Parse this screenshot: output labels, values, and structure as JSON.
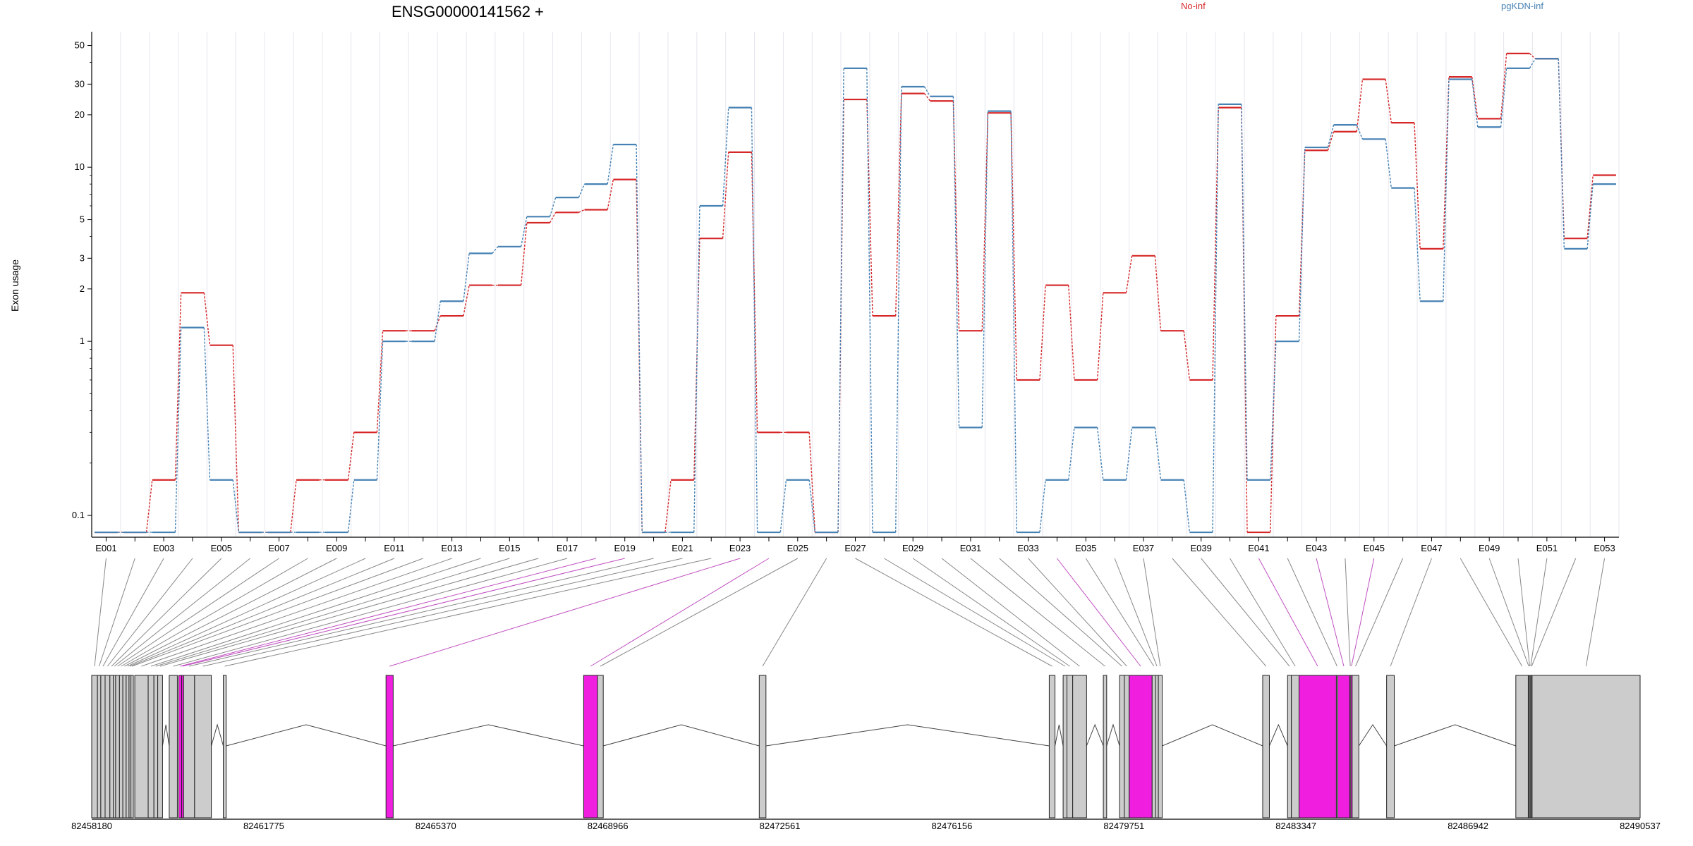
{
  "chart_data": {
    "type": "line",
    "title": "ENSG00000141562 +",
    "ylabel": "Exon usage",
    "xlabel": "",
    "y_scale": "log",
    "ylim": [
      0.075,
      60
    ],
    "y_ticks": [
      0.1,
      1,
      2,
      3,
      5,
      10,
      20,
      30,
      50
    ],
    "y_tick_labels": [
      "0.1",
      "1",
      "2",
      "3",
      "5",
      "10",
      "20",
      "30",
      "50"
    ],
    "grid": "vertical, light",
    "legend": "top, horizontal",
    "categories": [
      "E001",
      "E002",
      "E003",
      "E004",
      "E005",
      "E006",
      "E007",
      "E008",
      "E009",
      "E010",
      "E011",
      "E012",
      "E013",
      "E014",
      "E015",
      "E016",
      "E017",
      "E018",
      "E019",
      "E020",
      "E021",
      "E022",
      "E023",
      "E024",
      "E025",
      "E026",
      "E027",
      "E028",
      "E029",
      "E030",
      "E031",
      "E032",
      "E033",
      "E034",
      "E035",
      "E036",
      "E037",
      "E038",
      "E039",
      "E040",
      "E041",
      "E042",
      "E043",
      "E044",
      "E045",
      "E046",
      "E047",
      "E048",
      "E049",
      "E050",
      "E051",
      "E052",
      "E053"
    ],
    "x_tick_labels": [
      "E001",
      "E003",
      "E005",
      "E007",
      "E009",
      "E011",
      "E013",
      "E015",
      "E017",
      "E019",
      "E021",
      "E023",
      "E025",
      "E027",
      "E029",
      "E031",
      "E033",
      "E035",
      "E037",
      "E039",
      "E041",
      "E043",
      "E045",
      "E047",
      "E049",
      "E051",
      "E053"
    ],
    "series": [
      {
        "name": "No-inf",
        "color": "#d62728",
        "values": [
          0.08,
          0.08,
          0.16,
          1.9,
          0.95,
          0.08,
          0.08,
          0.16,
          0.16,
          0.3,
          1.15,
          1.15,
          1.4,
          2.1,
          2.1,
          4.8,
          5.5,
          5.7,
          8.5,
          0.08,
          0.16,
          3.9,
          12.2,
          0.3,
          0.3,
          0.08,
          24.5,
          1.4,
          26.5,
          24.0,
          1.15,
          20.5,
          0.6,
          2.1,
          0.6,
          1.9,
          3.1,
          1.15,
          0.6,
          22.0,
          0.08,
          1.4,
          12.5,
          16.0,
          32.0,
          18.0,
          3.4,
          33.0,
          19.0,
          45.0,
          42.0,
          3.9,
          9.0
        ]
      },
      {
        "name": "pgKDN-inf",
        "color": "#4682b4",
        "values": [
          0.08,
          0.08,
          0.08,
          1.2,
          0.16,
          0.08,
          0.08,
          0.08,
          0.08,
          0.16,
          1.0,
          1.0,
          1.7,
          3.2,
          3.5,
          5.2,
          6.7,
          8.0,
          13.5,
          0.08,
          0.08,
          6.0,
          22.0,
          0.08,
          0.16,
          0.08,
          37.0,
          0.08,
          29.0,
          25.5,
          0.32,
          21.0,
          0.08,
          0.16,
          0.32,
          0.16,
          0.32,
          0.16,
          0.08,
          23.0,
          0.16,
          1.0,
          13.0,
          17.5,
          14.5,
          7.6,
          1.7,
          32.0,
          17.0,
          37.0,
          42.0,
          3.4,
          8.0
        ]
      }
    ],
    "gene_model": {
      "genomic_ticks": [
        "82458180",
        "82461775",
        "82465370",
        "82468966",
        "82472561",
        "82476156",
        "82479751",
        "82483347",
        "82486942",
        "82490537"
      ],
      "range_start": 82458180,
      "range_end": 82490537,
      "box_fill": "#cccccc",
      "highlight_fill": "#f01fe0",
      "exons": [
        {
          "id": "E001",
          "start": 82458180,
          "end": 82458300,
          "hl": false
        },
        {
          "id": "E002",
          "start": 82458300,
          "end": 82458370,
          "hl": false
        },
        {
          "id": "E003",
          "start": 82458370,
          "end": 82458460,
          "hl": false
        },
        {
          "id": "E004",
          "start": 82458460,
          "end": 82458560,
          "hl": false
        },
        {
          "id": "E005",
          "start": 82458560,
          "end": 82458630,
          "hl": false
        },
        {
          "id": "E006",
          "start": 82458630,
          "end": 82458680,
          "hl": false
        },
        {
          "id": "E007",
          "start": 82458680,
          "end": 82458760,
          "hl": false
        },
        {
          "id": "E008",
          "start": 82458760,
          "end": 82458830,
          "hl": false
        },
        {
          "id": "E009",
          "start": 82458830,
          "end": 82458900,
          "hl": false
        },
        {
          "id": "E010",
          "start": 82458900,
          "end": 82458960,
          "hl": false
        },
        {
          "id": "E011",
          "start": 82458960,
          "end": 82459000,
          "hl": false
        },
        {
          "id": "E012",
          "start": 82459000,
          "end": 82459050,
          "hl": false
        },
        {
          "id": "E013",
          "start": 82459080,
          "end": 82459360,
          "hl": false
        },
        {
          "id": "E014",
          "start": 82459360,
          "end": 82459480,
          "hl": false
        },
        {
          "id": "E015",
          "start": 82459480,
          "end": 82459560,
          "hl": false
        },
        {
          "id": "E016",
          "start": 82459560,
          "end": 82459660,
          "hl": false
        },
        {
          "id": "E017",
          "start": 82459800,
          "end": 82459970,
          "hl": false
        },
        {
          "id": "E018",
          "start": 82460000,
          "end": 82460060,
          "hl": true
        },
        {
          "id": "E019",
          "start": 82460060,
          "end": 82460100,
          "hl": true
        },
        {
          "id": "E020",
          "start": 82460100,
          "end": 82460330,
          "hl": false
        },
        {
          "id": "E021",
          "start": 82460330,
          "end": 82460680,
          "hl": false
        },
        {
          "id": "E022",
          "start": 82460930,
          "end": 82460990,
          "hl": false
        },
        {
          "id": "E023",
          "start": 82464330,
          "end": 82464480,
          "hl": true
        },
        {
          "id": "E024",
          "start": 82468460,
          "end": 82468750,
          "hl": true
        },
        {
          "id": "E025",
          "start": 82468750,
          "end": 82468870,
          "hl": false
        },
        {
          "id": "E026",
          "start": 82472130,
          "end": 82472270,
          "hl": false
        },
        {
          "id": "E027",
          "start": 82478190,
          "end": 82478310,
          "hl": false
        },
        {
          "id": "E028",
          "start": 82478480,
          "end": 82478560,
          "hl": false
        },
        {
          "id": "E029",
          "start": 82478560,
          "end": 82478680,
          "hl": false
        },
        {
          "id": "E030",
          "start": 82478680,
          "end": 82478970,
          "hl": false
        },
        {
          "id": "E031",
          "start": 82479320,
          "end": 82479390,
          "hl": false
        },
        {
          "id": "E032",
          "start": 82479660,
          "end": 82479760,
          "hl": false
        },
        {
          "id": "E033",
          "start": 82479760,
          "end": 82479860,
          "hl": false
        },
        {
          "id": "E034",
          "start": 82479860,
          "end": 82480340,
          "hl": true
        },
        {
          "id": "E035",
          "start": 82480340,
          "end": 82480410,
          "hl": false
        },
        {
          "id": "E036",
          "start": 82480410,
          "end": 82480470,
          "hl": false
        },
        {
          "id": "E037",
          "start": 82480470,
          "end": 82480550,
          "hl": false
        },
        {
          "id": "E038",
          "start": 82482650,
          "end": 82482790,
          "hl": false
        },
        {
          "id": "E039",
          "start": 82483170,
          "end": 82483250,
          "hl": false
        },
        {
          "id": "E040",
          "start": 82483250,
          "end": 82483410,
          "hl": false
        },
        {
          "id": "E041",
          "start": 82483410,
          "end": 82484190,
          "hl": true
        },
        {
          "id": "E042",
          "start": 82484190,
          "end": 82484220,
          "hl": false
        },
        {
          "id": "E043",
          "start": 82484220,
          "end": 82484470,
          "hl": true
        },
        {
          "id": "E044",
          "start": 82484470,
          "end": 82484490,
          "hl": false
        },
        {
          "id": "E045",
          "start": 82484490,
          "end": 82484520,
          "hl": true
        },
        {
          "id": "E046",
          "start": 82484520,
          "end": 82484660,
          "hl": false
        },
        {
          "id": "E047",
          "start": 82485240,
          "end": 82485400,
          "hl": false
        },
        {
          "id": "E048",
          "start": 82487940,
          "end": 82488200,
          "hl": false
        },
        {
          "id": "E049",
          "start": 82488200,
          "end": 82488220,
          "hl": false
        },
        {
          "id": "E050",
          "start": 82488220,
          "end": 82488240,
          "hl": false
        },
        {
          "id": "E051",
          "start": 82488240,
          "end": 82488260,
          "hl": false
        },
        {
          "id": "E052",
          "start": 82488260,
          "end": 82488280,
          "hl": false
        },
        {
          "id": "E053",
          "start": 82488280,
          "end": 82490537,
          "hl": false
        }
      ]
    }
  }
}
